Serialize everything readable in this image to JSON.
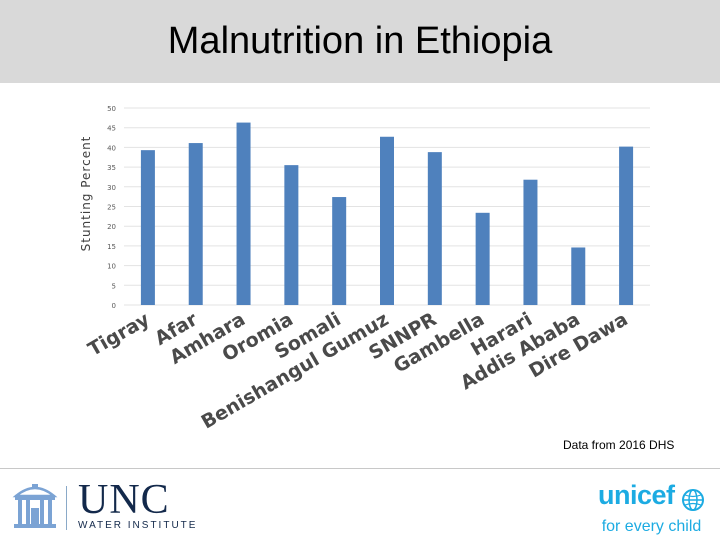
{
  "page": {
    "title": "Malnutrition in Ethiopia",
    "source": "Data from 2016 DHS"
  },
  "chart_data": {
    "type": "bar",
    "title": "Malnutrition in Ethiopia",
    "xlabel": "",
    "ylabel": "Stunting Percent",
    "ylim": [
      0,
      50
    ],
    "yticks": [
      0,
      5,
      10,
      15,
      20,
      25,
      30,
      35,
      40,
      45,
      50
    ],
    "grid": true,
    "bar_color": "#4f81bd",
    "label_color": "#4a4a4a",
    "categories": [
      "Tigray",
      "Afar",
      "Amhara",
      "Oromia",
      "Somali",
      "Benishangul Gumuz",
      "SNNPR",
      "Gambella",
      "Harari",
      "Addis Ababa",
      "Dire Dawa"
    ],
    "values": [
      39.3,
      41.1,
      46.3,
      35.5,
      27.4,
      42.7,
      38.8,
      23.4,
      31.8,
      14.6,
      40.2
    ]
  },
  "footer": {
    "unc_name": "UNC",
    "unc_subtitle": "WATER INSTITUTE",
    "unicef_name": "unicef",
    "unicef_tagline": "for every child",
    "unc_color": "#13294b",
    "unicef_color": "#1cabe2"
  }
}
